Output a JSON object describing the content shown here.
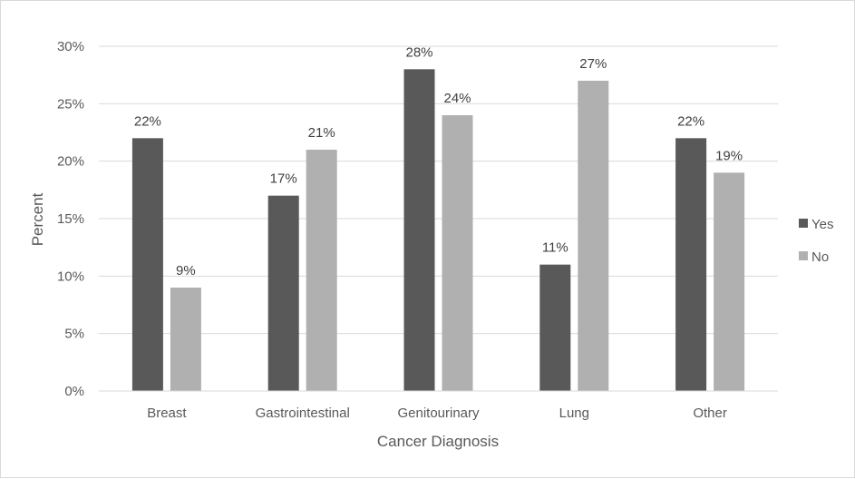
{
  "chart_data": {
    "type": "bar",
    "categories": [
      "Breast",
      "Gastrointestinal",
      "Genitourinary",
      "Lung",
      "Other"
    ],
    "series": [
      {
        "name": "Yes",
        "values": [
          22,
          17,
          28,
          11,
          22
        ],
        "color": "#595959"
      },
      {
        "name": "No",
        "values": [
          9,
          21,
          24,
          27,
          19
        ],
        "color": "#b0b0b0"
      }
    ],
    "value_suffix": "%",
    "title": "",
    "xlabel": "Cancer Diagnosis",
    "ylabel": "Percent",
    "ylim": [
      0,
      30
    ],
    "yticks": [
      0,
      5,
      10,
      15,
      20,
      25,
      30
    ],
    "ytick_labels": [
      "0%",
      "5%",
      "10%",
      "15%",
      "20%",
      "25%",
      "30%"
    ],
    "grid": true,
    "legend_position": "right"
  }
}
